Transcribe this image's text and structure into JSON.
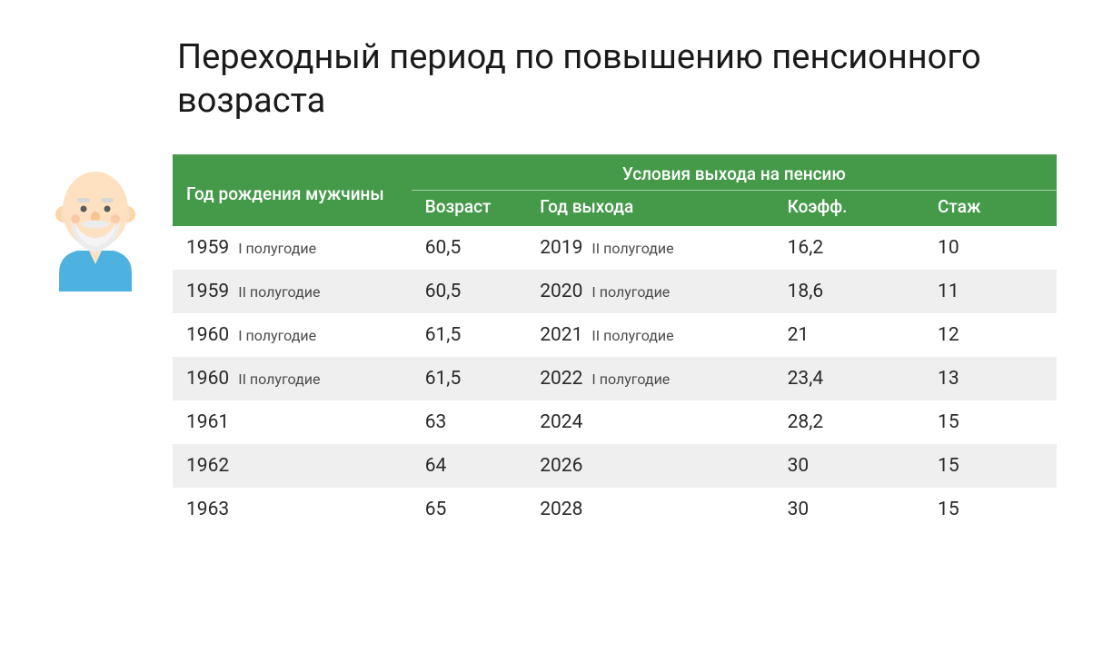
{
  "title": "Переходный период по повышению пенсионного возраста",
  "table": {
    "header": {
      "birth_year": "Год рождения мужчины",
      "conditions": "Условия выхода на пенсию",
      "age": "Возраст",
      "exit_year": "Год выхода",
      "coef": "Коэфф.",
      "staj": "Стаж"
    },
    "rows": [
      {
        "birth_year": "1959",
        "birth_half": "I полугодие",
        "age": "60,5",
        "exit_year": "2019",
        "exit_half": "II полугодие",
        "coef": "16,2",
        "staj": "10",
        "striped": false
      },
      {
        "birth_year": "1959",
        "birth_half": "II полугодие",
        "age": "60,5",
        "exit_year": "2020",
        "exit_half": "I полугодие",
        "coef": "18,6",
        "staj": "11",
        "striped": true
      },
      {
        "birth_year": "1960",
        "birth_half": "I полугодие",
        "age": "61,5",
        "exit_year": "2021",
        "exit_half": "II полугодие",
        "coef": "21",
        "staj": "12",
        "striped": false
      },
      {
        "birth_year": "1960",
        "birth_half": "II полугодие",
        "age": "61,5",
        "exit_year": "2022",
        "exit_half": "I полугодие",
        "coef": "23,4",
        "staj": "13",
        "striped": true
      },
      {
        "birth_year": "1961",
        "birth_half": "",
        "age": "63",
        "exit_year": "2024",
        "exit_half": "",
        "coef": "28,2",
        "staj": "15",
        "striped": false
      },
      {
        "birth_year": "1962",
        "birth_half": "",
        "age": "64",
        "exit_year": "2026",
        "exit_half": "",
        "coef": "30",
        "staj": "15",
        "striped": true
      },
      {
        "birth_year": "1963",
        "birth_half": "",
        "age": "65",
        "exit_year": "2028",
        "exit_half": "",
        "coef": "30",
        "staj": "15",
        "striped": false
      }
    ]
  },
  "colors": {
    "header_bg": "#459a4a",
    "header_text": "#ffffff",
    "stripe_bg": "#efefef",
    "text": "#2a2a2a"
  }
}
